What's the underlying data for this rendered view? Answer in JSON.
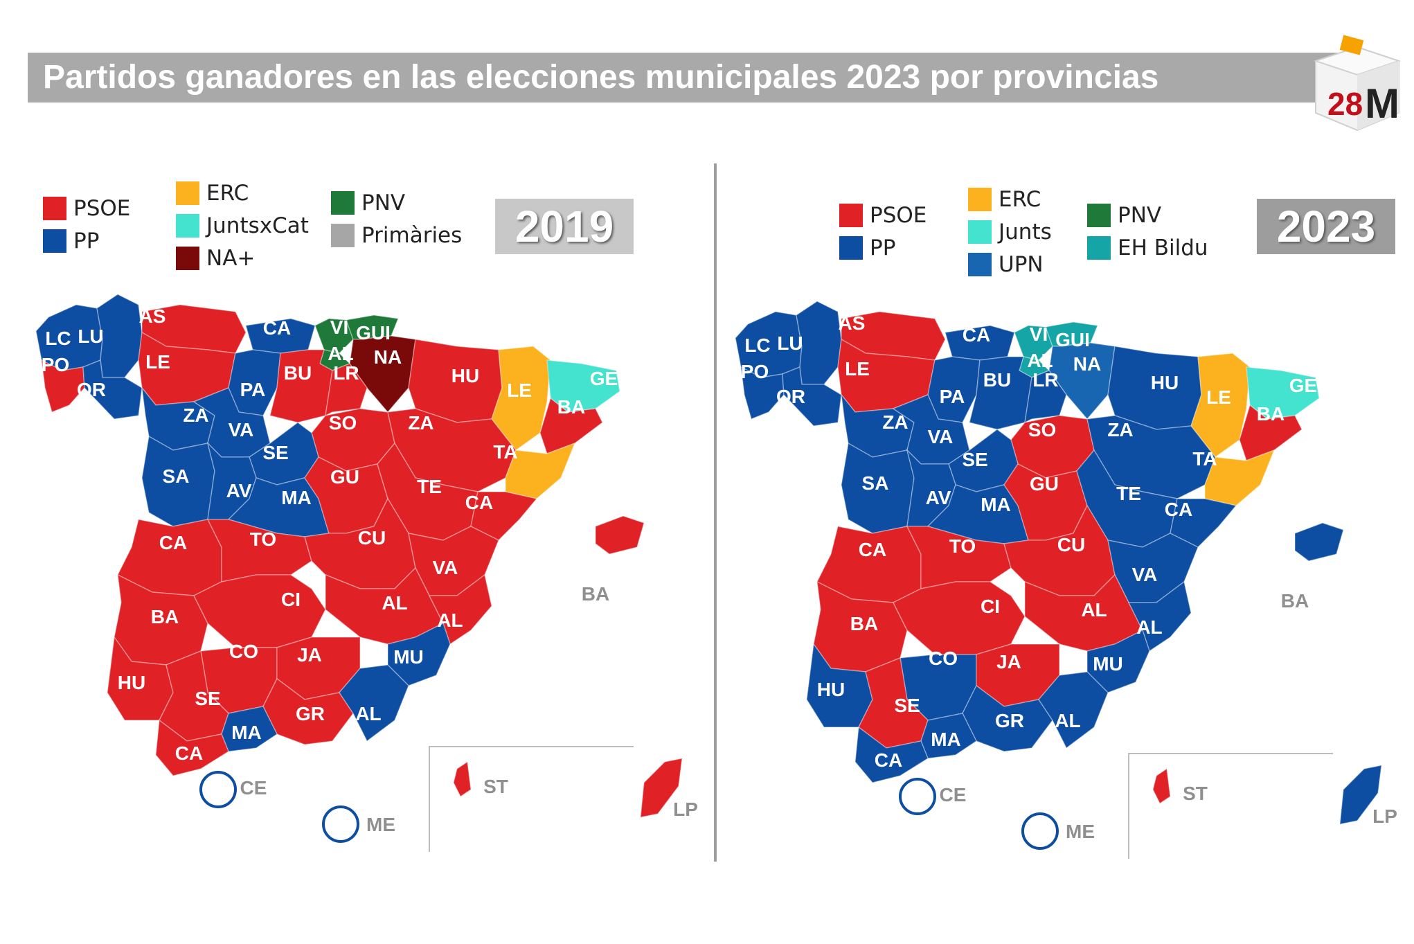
{
  "title": "Partidos ganadores en las elecciones municipales 2023 por provincias",
  "logo": {
    "number": "28",
    "letter": "M",
    "colors": {
      "box": "#f0f0f0",
      "slot": "#f6a200",
      "number": "#c0101a",
      "letter": "#222222"
    }
  },
  "colors": {
    "PSOE": "#e02126",
    "PP": "#0d4ea3",
    "ERC": "#fbb21e",
    "JuntsxCat": "#43e3cf",
    "Junts": "#43e3cf",
    "NA+": "#7a0a0a",
    "PNV": "#1f7a3a",
    "Primàries": "#a6a6a6",
    "UPN": "#1866b1",
    "EH Bildu": "#16a5a6"
  },
  "maps": [
    {
      "year": "2019",
      "legend": [
        {
          "label": "PSOE",
          "color": "#e02126"
        },
        {
          "label": "PP",
          "color": "#0d4ea3"
        },
        {
          "label": "ERC",
          "color": "#fbb21e"
        },
        {
          "label": "JuntsxCat",
          "color": "#43e3cf"
        },
        {
          "label": "NA+",
          "color": "#7a0a0a"
        },
        {
          "label": "PNV",
          "color": "#1f7a3a"
        },
        {
          "label": "Primàries",
          "color": "#a6a6a6"
        }
      ],
      "provinces": [
        {
          "code": "LC",
          "winner": "PP"
        },
        {
          "code": "LU",
          "winner": "PP"
        },
        {
          "code": "PO",
          "winner": "PSOE"
        },
        {
          "code": "OR",
          "winner": "PP"
        },
        {
          "code": "AS",
          "winner": "PSOE"
        },
        {
          "code": "CA",
          "winner": "PP"
        },
        {
          "code": "VI",
          "winner": "PNV"
        },
        {
          "code": "GUI",
          "winner": "PNV"
        },
        {
          "code": "AL",
          "winner": "PNV"
        },
        {
          "code": "NA",
          "winner": "NA+"
        },
        {
          "code": "LE",
          "winner": "PSOE"
        },
        {
          "code": "PA",
          "winner": "PP"
        },
        {
          "code": "BU",
          "winner": "PSOE"
        },
        {
          "code": "LR",
          "winner": "PSOE"
        },
        {
          "code": "HU",
          "winner": "PSOE"
        },
        {
          "code": "LE",
          "winner": "ERC"
        },
        {
          "code": "GE",
          "winner": "JuntsxCat"
        },
        {
          "code": "BA",
          "winner": "PSOE"
        },
        {
          "code": "ZA",
          "winner": "PP"
        },
        {
          "code": "VA",
          "winner": "PP"
        },
        {
          "code": "SO",
          "winner": "PSOE"
        },
        {
          "code": "ZA",
          "winner": "PSOE"
        },
        {
          "code": "TA",
          "winner": "ERC"
        },
        {
          "code": "SE",
          "winner": "PP"
        },
        {
          "code": "SA",
          "winner": "PP"
        },
        {
          "code": "AV",
          "winner": "PP"
        },
        {
          "code": "MA",
          "winner": "PP"
        },
        {
          "code": "GU",
          "winner": "PSOE"
        },
        {
          "code": "TE",
          "winner": "PSOE"
        },
        {
          "code": "CA",
          "winner": "PSOE"
        },
        {
          "code": "CA",
          "winner": "PSOE"
        },
        {
          "code": "TO",
          "winner": "PSOE"
        },
        {
          "code": "CU",
          "winner": "PSOE"
        },
        {
          "code": "VA",
          "winner": "PSOE"
        },
        {
          "code": "BA",
          "winner": "PSOE"
        },
        {
          "code": "CI",
          "winner": "PSOE"
        },
        {
          "code": "AL",
          "winner": "PSOE"
        },
        {
          "code": "AL",
          "winner": "PSOE"
        },
        {
          "code": "CO",
          "winner": "PSOE"
        },
        {
          "code": "JA",
          "winner": "PSOE"
        },
        {
          "code": "MU",
          "winner": "PP"
        },
        {
          "code": "HU",
          "winner": "PSOE"
        },
        {
          "code": "SE",
          "winner": "PSOE"
        },
        {
          "code": "GR",
          "winner": "PSOE"
        },
        {
          "code": "AL",
          "winner": "PP"
        },
        {
          "code": "MA",
          "winner": "PP"
        },
        {
          "code": "CA",
          "winner": "PSOE"
        },
        {
          "code": "BA",
          "winner": "PSOE"
        },
        {
          "code": "ST",
          "winner": "PSOE"
        },
        {
          "code": "LP",
          "winner": "PSOE"
        }
      ],
      "grey_labels": [
        "BA",
        "CE",
        "ME",
        "ST",
        "LP"
      ]
    },
    {
      "year": "2023",
      "legend": [
        {
          "label": "PSOE",
          "color": "#e02126"
        },
        {
          "label": "PP",
          "color": "#0d4ea3"
        },
        {
          "label": "ERC",
          "color": "#fbb21e"
        },
        {
          "label": "Junts",
          "color": "#43e3cf"
        },
        {
          "label": "UPN",
          "color": "#1866b1"
        },
        {
          "label": "PNV",
          "color": "#1f7a3a"
        },
        {
          "label": "EH Bildu",
          "color": "#16a5a6"
        }
      ],
      "provinces": [
        {
          "code": "LC",
          "winner": "PP"
        },
        {
          "code": "LU",
          "winner": "PP"
        },
        {
          "code": "PO",
          "winner": "PP"
        },
        {
          "code": "OR",
          "winner": "PP"
        },
        {
          "code": "AS",
          "winner": "PSOE"
        },
        {
          "code": "CA",
          "winner": "PP"
        },
        {
          "code": "VI",
          "winner": "EH Bildu"
        },
        {
          "code": "GUI",
          "winner": "EH Bildu"
        },
        {
          "code": "AL",
          "winner": "EH Bildu"
        },
        {
          "code": "NA",
          "winner": "UPN"
        },
        {
          "code": "LE",
          "winner": "PSOE"
        },
        {
          "code": "PA",
          "winner": "PP"
        },
        {
          "code": "BU",
          "winner": "PP"
        },
        {
          "code": "LR",
          "winner": "PP"
        },
        {
          "code": "HU",
          "winner": "PP"
        },
        {
          "code": "LE",
          "winner": "ERC"
        },
        {
          "code": "GE",
          "winner": "Junts"
        },
        {
          "code": "BA",
          "winner": "PSOE"
        },
        {
          "code": "ZA",
          "winner": "PP"
        },
        {
          "code": "VA",
          "winner": "PP"
        },
        {
          "code": "SO",
          "winner": "PSOE"
        },
        {
          "code": "ZA",
          "winner": "PP"
        },
        {
          "code": "TA",
          "winner": "ERC"
        },
        {
          "code": "SE",
          "winner": "PP"
        },
        {
          "code": "SA",
          "winner": "PP"
        },
        {
          "code": "AV",
          "winner": "PP"
        },
        {
          "code": "MA",
          "winner": "PP"
        },
        {
          "code": "GU",
          "winner": "PSOE"
        },
        {
          "code": "TE",
          "winner": "PP"
        },
        {
          "code": "CA",
          "winner": "PP"
        },
        {
          "code": "CA",
          "winner": "PSOE"
        },
        {
          "code": "TO",
          "winner": "PSOE"
        },
        {
          "code": "CU",
          "winner": "PSOE"
        },
        {
          "code": "VA",
          "winner": "PP"
        },
        {
          "code": "BA",
          "winner": "PSOE"
        },
        {
          "code": "CI",
          "winner": "PSOE"
        },
        {
          "code": "AL",
          "winner": "PSOE"
        },
        {
          "code": "AL",
          "winner": "PP"
        },
        {
          "code": "CO",
          "winner": "PP"
        },
        {
          "code": "JA",
          "winner": "PSOE"
        },
        {
          "code": "MU",
          "winner": "PP"
        },
        {
          "code": "HU",
          "winner": "PP"
        },
        {
          "code": "SE",
          "winner": "PSOE"
        },
        {
          "code": "GR",
          "winner": "PP"
        },
        {
          "code": "AL",
          "winner": "PP"
        },
        {
          "code": "MA",
          "winner": "PP"
        },
        {
          "code": "CA",
          "winner": "PP"
        },
        {
          "code": "BA",
          "winner": "PP"
        },
        {
          "code": "ST",
          "winner": "PSOE"
        },
        {
          "code": "LP",
          "winner": "PP"
        }
      ],
      "grey_labels": [
        "BA",
        "CE",
        "ME",
        "ST",
        "LP"
      ]
    }
  ]
}
